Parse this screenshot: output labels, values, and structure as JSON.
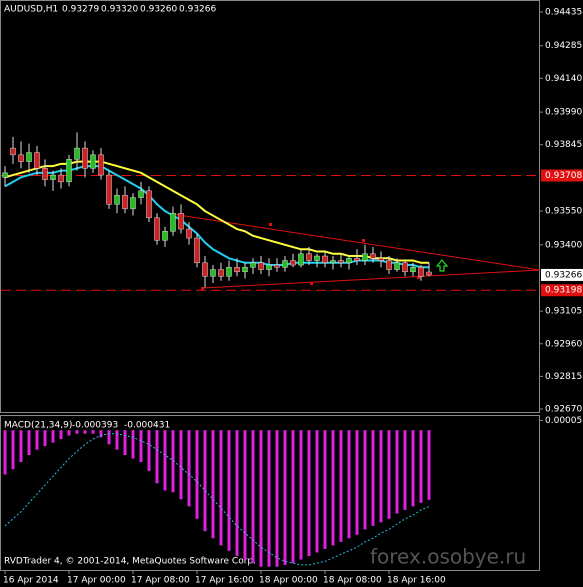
{
  "chart_data": {
    "type": "candlestick",
    "symbol": "AUDUSD,H1",
    "ohlc_text": [
      "0.93279",
      "0.93320",
      "0.93260",
      "0.93266"
    ],
    "categories": [
      "16 Apr 2014",
      null,
      null,
      null,
      null,
      null,
      null,
      null,
      "17 Apr 00:00",
      null,
      null,
      null,
      null,
      null,
      null,
      null,
      "17 Apr 08:00",
      null,
      null,
      null,
      null,
      null,
      null,
      null,
      "17 Apr 16:00",
      null,
      null,
      null,
      null,
      null,
      null,
      null,
      "18 Apr 00:00",
      null,
      null,
      null,
      null,
      null,
      null,
      null,
      "18 Apr 08:00",
      null,
      null,
      null,
      null,
      null,
      null,
      null,
      "18 Apr 16:00",
      null,
      null,
      null,
      null,
      null
    ],
    "open": [
      0.937,
      0.9383,
      0.938,
      0.9377,
      0.9381,
      0.9374,
      0.9369,
      0.9371,
      0.9368,
      0.9378,
      0.9383,
      0.9374,
      0.938,
      0.9371,
      0.9358,
      0.9362,
      0.9356,
      0.9361,
      0.9364,
      0.9352,
      0.9342,
      0.9346,
      0.9354,
      0.9347,
      0.9343,
      0.9332,
      0.9326,
      0.9329,
      0.9326,
      0.933,
      0.9328,
      0.933,
      0.9332,
      0.9329,
      0.9331,
      0.933,
      0.9333,
      0.9331,
      0.9336,
      0.9333,
      0.9335,
      0.9332,
      0.9333,
      0.9332,
      0.9334,
      0.9333,
      0.9336,
      0.9334,
      0.9333,
      0.9329,
      0.9332,
      0.9328,
      0.933,
      0.93279
    ],
    "high": [
      0.9375,
      0.9388,
      0.9386,
      0.9385,
      0.9384,
      0.9378,
      0.9373,
      0.9374,
      0.938,
      0.939,
      0.9386,
      0.9382,
      0.9383,
      0.9373,
      0.9365,
      0.9366,
      0.9363,
      0.9368,
      0.9366,
      0.9354,
      0.9348,
      0.9357,
      0.9358,
      0.935,
      0.9345,
      0.9335,
      0.9331,
      0.9332,
      0.9333,
      0.9334,
      0.9332,
      0.9334,
      0.9335,
      0.9334,
      0.9334,
      0.9335,
      0.9336,
      0.9338,
      0.9339,
      0.9336,
      0.9337,
      0.9335,
      0.9336,
      0.9335,
      0.9338,
      0.934,
      0.9339,
      0.9337,
      0.9335,
      0.9334,
      0.9333,
      0.9332,
      0.9331,
      0.9332
    ],
    "low": [
      0.9366,
      0.9376,
      0.9374,
      0.9372,
      0.9371,
      0.9366,
      0.9364,
      0.9365,
      0.9366,
      0.9373,
      0.937,
      0.9372,
      0.9369,
      0.9356,
      0.9354,
      0.9354,
      0.9353,
      0.9358,
      0.935,
      0.934,
      0.9339,
      0.9344,
      0.9345,
      0.934,
      0.933,
      0.9321,
      0.9323,
      0.9324,
      0.9324,
      0.9326,
      0.9325,
      0.9327,
      0.9327,
      0.9326,
      0.9328,
      0.9328,
      0.933,
      0.933,
      0.9331,
      0.933,
      0.933,
      0.9329,
      0.933,
      0.9329,
      0.9331,
      0.9331,
      0.9332,
      0.933,
      0.9327,
      0.9328,
      0.9326,
      0.9326,
      0.9324,
      0.9326
    ],
    "close": [
      0.9372,
      0.938,
      0.9377,
      0.9381,
      0.9374,
      0.9369,
      0.9371,
      0.9368,
      0.9378,
      0.9383,
      0.9374,
      0.938,
      0.9371,
      0.9358,
      0.9362,
      0.9356,
      0.9361,
      0.9364,
      0.9352,
      0.9342,
      0.9346,
      0.9354,
      0.9347,
      0.9343,
      0.9332,
      0.9326,
      0.9329,
      0.9326,
      0.933,
      0.9328,
      0.933,
      0.9332,
      0.9329,
      0.9331,
      0.933,
      0.9333,
      0.9331,
      0.9336,
      0.9333,
      0.9335,
      0.9332,
      0.9333,
      0.9332,
      0.9334,
      0.9333,
      0.9336,
      0.9334,
      0.9333,
      0.9329,
      0.9332,
      0.9328,
      0.933,
      0.9326,
      0.93266
    ],
    "up_color": "#1fc01f",
    "down_color": "#d02020",
    "series": [
      {
        "color": "#ffff40",
        "values": [
          0.937,
          0.9371,
          0.9372,
          0.9373,
          0.9374,
          0.9375,
          0.9375,
          0.9376,
          0.9376,
          0.9377,
          0.9377,
          0.9377,
          0.9377,
          0.9376,
          0.9375,
          0.9374,
          0.9373,
          0.9372,
          0.937,
          0.9368,
          0.9366,
          0.9364,
          0.9362,
          0.936,
          0.9358,
          0.9355,
          0.9353,
          0.9351,
          0.9349,
          0.9347,
          0.9346,
          0.9344,
          0.9343,
          0.9342,
          0.9341,
          0.934,
          0.9339,
          0.9338,
          0.9338,
          0.9337,
          0.9337,
          0.9336,
          0.9336,
          0.9335,
          0.9335,
          0.9335,
          0.9334,
          0.9334,
          0.9334,
          0.9333,
          0.9333,
          0.9333,
          0.9332,
          0.9332
        ]
      },
      {
        "color": "#20d0f0",
        "values": [
          0.9366,
          0.9368,
          0.937,
          0.9371,
          0.9372,
          0.9372,
          0.9372,
          0.9373,
          0.9373,
          0.9374,
          0.9375,
          0.9375,
          0.9375,
          0.9373,
          0.9371,
          0.9369,
          0.9367,
          0.9365,
          0.9362,
          0.9358,
          0.9355,
          0.9353,
          0.9351,
          0.9348,
          0.9345,
          0.9341,
          0.9338,
          0.9336,
          0.9334,
          0.9333,
          0.9332,
          0.9332,
          0.9332,
          0.9331,
          0.9331,
          0.9331,
          0.9332,
          0.9332,
          0.9332,
          0.9332,
          0.9332,
          0.9332,
          0.9332,
          0.9332,
          0.9333,
          0.9333,
          0.9333,
          0.9333,
          0.9332,
          0.9332,
          0.9331,
          0.9331,
          0.933,
          0.933
        ]
      }
    ],
    "ylim": [
      0.9267,
      0.94435
    ],
    "yticks": [
      0.94435,
      0.94285,
      {
        "value": 0.9414,
        "label": "0.94140"
      },
      {
        "value": 0.9399,
        "label": "0.93990"
      },
      0.93845,
      {
        "value": 0.9355,
        "label": "0.93550"
      },
      {
        "value": 0.934,
        "label": "0.93400"
      },
      0.93105,
      {
        "value": 0.9296,
        "label": "0.92960"
      },
      0.92815,
      {
        "value": 0.9267,
        "label": "0.92670"
      }
    ],
    "levels": [
      0.93708,
      0.93198
    ],
    "level_color": "#e01010",
    "current_price": 0.93266,
    "macd": {
      "label": "MACD(21,34,9)",
      "readout": [
        -0.000393,
        -0.000431
      ],
      "histogram": [
        -0.00025,
        -0.00022,
        -0.00018,
        -0.00014,
        -0.00011,
        -9e-05,
        -7e-05,
        -5e-05,
        -3e-05,
        -2e-05,
        -2e-05,
        -2e-05,
        -4e-05,
        -8e-05,
        -0.00011,
        -0.00014,
        -0.00016,
        -0.00018,
        -0.00023,
        -0.0003,
        -0.00034,
        -0.00035,
        -0.00039,
        -0.00043,
        -0.0005,
        -0.00057,
        -0.00061,
        -0.00065,
        -0.00068,
        -0.00071,
        -0.00073,
        -0.00075,
        -0.00077,
        -0.00077,
        -0.00077,
        -0.00076,
        -0.00075,
        -0.00073,
        -0.00071,
        -0.00069,
        -0.00067,
        -0.00065,
        -0.00063,
        -0.00061,
        -0.00059,
        -0.00056,
        -0.00054,
        -0.00052,
        -0.0005,
        -0.00047,
        -0.00045,
        -0.00043,
        -0.00041,
        -0.000393
      ],
      "signal": [
        -0.00054,
        -0.0005,
        -0.00046,
        -0.00041,
        -0.00036,
        -0.00031,
        -0.00026,
        -0.00021,
        -0.00016,
        -0.00012,
        -8e-05,
        -5e-05,
        -3e-05,
        -2e-05,
        -2e-05,
        -3e-05,
        -4e-05,
        -6e-05,
        -8e-05,
        -0.00011,
        -0.00014,
        -0.00017,
        -0.00021,
        -0.00025,
        -0.00029,
        -0.00034,
        -0.00039,
        -0.00044,
        -0.00049,
        -0.00054,
        -0.00058,
        -0.00062,
        -0.00066,
        -0.00069,
        -0.00072,
        -0.00074,
        -0.00075,
        -0.00076,
        -0.00076,
        -0.00075,
        -0.00074,
        -0.00072,
        -0.0007,
        -0.00068,
        -0.00066,
        -0.00063,
        -0.00061,
        -0.00058,
        -0.00056,
        -0.00053,
        -0.0005,
        -0.00048,
        -0.00045,
        -0.000431
      ],
      "histogram_color": "#e020e0",
      "signal_color": "#20c0e0",
      "ylim": [
        -0.0008,
        8e-05
      ],
      "yticks": [
        5.5e-05
      ]
    },
    "footer": "RVDTrader 4, © 2001-2014, MetaQuotes Software Corp.",
    "watermark": "forex.osobye.ru"
  }
}
